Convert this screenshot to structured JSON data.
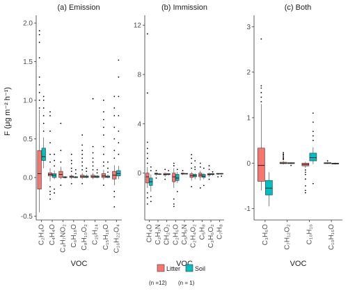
{
  "colors": {
    "litter": "#F8766D",
    "soil": "#00BFC4",
    "axis": "#333333",
    "outlier": "#000000"
  },
  "legend": {
    "items": [
      {
        "label": "Litter",
        "color": "#F8766D"
      },
      {
        "label": "Soil",
        "color": "#00BFC4"
      }
    ],
    "litter_n": "(n =12)",
    "soil_n": "(n = 1)"
  },
  "chart_data": [
    {
      "type": "box",
      "title": "(a) Emission",
      "ylabel": "F (μg m⁻² h⁻¹)",
      "xlabel": "VOC",
      "ylim": [
        -0.55,
        2.1
      ],
      "yticks": [
        -0.5,
        0.0,
        0.5,
        1.0,
        1.5,
        2.0
      ],
      "ytick_labels": [
        "-0.5",
        "0.0",
        "0.5",
        "1.0",
        "1.5",
        "2.0"
      ],
      "categories": [
        {
          "label": "C₂H₄O",
          "litter": {
            "low": -0.45,
            "q1": -0.15,
            "med": 0.05,
            "q3": 0.35,
            "high": 0.88,
            "out": [
              0.9,
              1.0,
              1.1,
              1.2,
              1.3,
              1.55,
              1.75,
              1.85,
              1.9
            ]
          },
          "soil": {
            "low": 0.12,
            "q1": 0.22,
            "med": 0.27,
            "q3": 0.38,
            "high": 0.52,
            "out": [
              0.6,
              0.7,
              0.8,
              0.9,
              1.0,
              1.05
            ]
          }
        },
        {
          "label": "C₄H₄O",
          "litter": {
            "low": -0.05,
            "q1": 0.02,
            "med": 0.04,
            "q3": 0.06,
            "high": 0.12,
            "out": [
              -0.28,
              -0.22,
              -0.18,
              -0.12,
              0.2,
              0.3,
              0.45,
              0.6,
              0.8,
              0.85
            ]
          },
          "soil": {
            "low": -0.02,
            "q1": 0.0,
            "med": 0.03,
            "q3": 0.05,
            "high": 0.09,
            "out": [
              -0.2,
              -0.15,
              0.15,
              0.22,
              0.3
            ]
          }
        },
        {
          "label": "C₄H₇NO₂",
          "litter": {
            "low": -0.02,
            "q1": 0.0,
            "med": 0.04,
            "q3": 0.08,
            "high": 0.14,
            "out": [
              -0.1,
              0.2,
              0.35,
              0.7
            ]
          },
          "soil": {
            "low": -0.01,
            "q1": 0.0,
            "med": 0.0,
            "q3": 0.01,
            "high": 0.02,
            "out": [
              0.0
            ]
          }
        },
        {
          "label": "C₆H₁₈O",
          "litter": {
            "low": -0.02,
            "q1": 0.0,
            "med": 0.01,
            "q3": 0.02,
            "high": 0.04,
            "out": [
              -0.08,
              0.08,
              0.12,
              0.18,
              0.22,
              0.3
            ]
          },
          "soil": {
            "low": -0.01,
            "q1": 0.0,
            "med": 0.0,
            "q3": 0.01,
            "high": 0.02,
            "out": [
              0.05,
              0.1
            ]
          }
        },
        {
          "label": "C₈H₁₀O₂",
          "litter": {
            "low": -0.02,
            "q1": 0.0,
            "med": 0.01,
            "q3": 0.03,
            "high": 0.06,
            "out": [
              -0.08,
              0.1,
              0.15,
              0.2,
              0.25,
              0.3,
              0.35,
              0.42,
              0.55
            ]
          },
          "soil": {
            "low": -0.01,
            "q1": 0.0,
            "med": 0.01,
            "q3": 0.02,
            "high": 0.04,
            "out": [
              0.08,
              0.12
            ]
          }
        },
        {
          "label": "C₁₅H₂₄",
          "litter": {
            "low": -0.02,
            "q1": 0.0,
            "med": 0.01,
            "q3": 0.03,
            "high": 0.06,
            "out": [
              0.1,
              0.15,
              0.2,
              0.25,
              0.32,
              0.4,
              1.02
            ]
          },
          "soil": {
            "low": -0.01,
            "q1": 0.0,
            "med": 0.01,
            "q3": 0.02,
            "high": 0.03,
            "out": [
              0.06,
              0.1
            ]
          }
        },
        {
          "label": "C₁₅H₁₈O",
          "litter": {
            "low": -0.03,
            "q1": 0.0,
            "med": 0.02,
            "q3": 0.05,
            "high": 0.1,
            "out": [
              -0.1,
              0.15,
              0.2,
              0.3,
              0.4,
              0.55,
              0.65,
              0.75,
              0.85,
              1.0
            ]
          },
          "soil": {
            "low": -0.01,
            "q1": 0.0,
            "med": 0.01,
            "q3": 0.02,
            "high": 0.04,
            "out": [
              0.07,
              0.12,
              0.2
            ]
          }
        },
        {
          "label": "C₁₆H₂₂O₄",
          "litter": {
            "low": -0.1,
            "q1": -0.02,
            "med": 0.03,
            "q3": 0.08,
            "high": 0.16,
            "out": [
              -0.38,
              -0.25,
              -0.18,
              0.25,
              0.35,
              0.5,
              0.65,
              0.8,
              0.9,
              1.05
            ]
          },
          "soil": {
            "low": -0.02,
            "q1": 0.02,
            "med": 0.05,
            "q3": 0.09,
            "high": 0.15,
            "out": [
              0.3,
              0.45,
              0.6,
              0.8,
              1.05,
              1.3,
              1.52
            ]
          }
        }
      ]
    },
    {
      "type": "box",
      "title": "(b) Immission",
      "xlabel": "VOC",
      "ylim": [
        -3.8,
        12.8
      ],
      "yticks": [
        0,
        4,
        8,
        12
      ],
      "ytick_labels": [
        "0",
        "4",
        "8",
        "12"
      ],
      "categories": [
        {
          "label": "CH₄O",
          "litter": {
            "low": -1.2,
            "q1": -0.8,
            "med": -0.3,
            "q3": 0.0,
            "high": 0.5,
            "out": [
              -2.5,
              -2.0,
              -1.6,
              0.8,
              1.2,
              1.6,
              2.0,
              2.5,
              6.5,
              11.3
            ]
          },
          "soil": {
            "low": -1.5,
            "q1": -1.0,
            "med": -0.7,
            "q3": -0.4,
            "high": -0.1,
            "out": [
              -2.3,
              -1.9,
              0.2,
              0.5
            ]
          }
        },
        {
          "label": "C₂H₃N",
          "litter": {
            "low": -0.2,
            "q1": -0.1,
            "med": -0.05,
            "q3": 0.0,
            "high": 0.05,
            "out": [
              -0.4,
              0.2
            ]
          },
          "soil": {
            "low": -0.15,
            "q1": -0.1,
            "med": -0.08,
            "q3": -0.05,
            "high": 0.0,
            "out": []
          }
        },
        {
          "label": "CH₂O₂",
          "litter": {
            "low": -0.3,
            "q1": -0.15,
            "med": -0.1,
            "q3": -0.02,
            "high": 0.05,
            "out": [
              -0.5,
              0.3
            ]
          },
          "soil": {
            "low": -0.2,
            "q1": -0.12,
            "med": -0.08,
            "q3": -0.04,
            "high": 0.0,
            "out": [
              0.2
            ]
          }
        },
        {
          "label": "C₂H₆O",
          "litter": {
            "low": -1.2,
            "q1": -0.7,
            "med": -0.3,
            "q3": 0.0,
            "high": 0.4,
            "out": [
              -2.7,
              -2.5,
              -2.1,
              0.6,
              0.8
            ]
          },
          "soil": {
            "low": -0.8,
            "q1": -0.6,
            "med": -0.4,
            "q3": -0.1,
            "high": 0.1,
            "out": [
              -1.5,
              0.3
            ]
          }
        },
        {
          "label": "C₅H₅N",
          "litter": {
            "low": -0.15,
            "q1": -0.08,
            "med": -0.05,
            "q3": 0.0,
            "high": 0.05,
            "out": [
              0.2
            ]
          },
          "soil": {
            "low": -0.1,
            "q1": -0.07,
            "med": -0.05,
            "q3": -0.02,
            "high": 0.0,
            "out": []
          }
        },
        {
          "label": "C₂H₄O₂",
          "litter": {
            "low": -0.6,
            "q1": -0.35,
            "med": -0.2,
            "q3": -0.05,
            "high": 0.1,
            "out": [
              -1.1,
              0.4,
              0.8,
              1.2,
              1.5
            ]
          },
          "soil": {
            "low": -0.5,
            "q1": -0.3,
            "med": -0.2,
            "q3": -0.1,
            "high": 0.0,
            "out": [
              0.3,
              0.5,
              1.0
            ]
          }
        },
        {
          "label": "C₅H₈",
          "litter": {
            "low": -0.6,
            "q1": -0.3,
            "med": -0.15,
            "q3": 0.0,
            "high": 0.2,
            "out": [
              -1.2,
              0.5,
              0.8
            ]
          },
          "soil": {
            "low": -0.5,
            "q1": -0.35,
            "med": -0.25,
            "q3": -0.1,
            "high": 0.0,
            "out": [
              -1.0,
              0.4
            ]
          }
        },
        {
          "label": "C₃H₆O₂",
          "litter": {
            "low": -0.3,
            "q1": -0.15,
            "med": -0.1,
            "q3": -0.03,
            "high": 0.05,
            "out": [
              -0.5,
              0.3,
              0.6
            ]
          },
          "soil": {
            "low": -0.2,
            "q1": -0.12,
            "med": -0.08,
            "q3": -0.04,
            "high": 0.0,
            "out": [
              0.1
            ]
          }
        },
        {
          "label": "C₇H₈",
          "litter": {
            "low": -0.15,
            "q1": -0.08,
            "med": -0.05,
            "q3": -0.02,
            "high": 0.02,
            "out": [
              -0.3
            ]
          },
          "soil": {
            "low": -0.12,
            "q1": -0.06,
            "med": -0.04,
            "q3": -0.02,
            "high": 0.0,
            "out": [
              -0.25
            ]
          }
        }
      ]
    },
    {
      "type": "box",
      "title": "(c) Both",
      "xlabel": "VOC",
      "ylim": [
        -1.25,
        3.25
      ],
      "yticks": [
        -1,
        0,
        1,
        2,
        3
      ],
      "ytick_labels": [
        "-1",
        "0",
        "1",
        "2",
        "3"
      ],
      "categories": [
        {
          "label": "C₃H₆O",
          "litter": {
            "low": -0.6,
            "q1": -0.4,
            "med": -0.05,
            "q3": 0.33,
            "high": 1.3,
            "out": [
              1.35,
              1.45,
              1.55,
              1.65,
              1.7,
              2.73
            ]
          },
          "soil": {
            "low": -0.95,
            "q1": -0.7,
            "med": -0.55,
            "q3": -0.38,
            "high": -0.2,
            "out": []
          }
        },
        {
          "label": "C₇H₁₂O₂",
          "litter": {
            "low": -0.03,
            "q1": -0.01,
            "med": 0.0,
            "q3": 0.02,
            "high": 0.05,
            "out": [
              0.08,
              0.1,
              0.12,
              0.15,
              0.18,
              0.2,
              0.23
            ]
          },
          "soil": {
            "low": -0.02,
            "q1": -0.01,
            "med": 0.0,
            "q3": 0.01,
            "high": 0.02,
            "out": [
              -0.05
            ]
          }
        },
        {
          "label": "C₁₀H₁₆",
          "litter": {
            "low": -0.1,
            "q1": -0.06,
            "med": -0.03,
            "q3": 0.0,
            "high": 0.03,
            "out": [
              -0.65,
              -0.6,
              -0.5,
              -0.35,
              -0.25,
              -0.2,
              -0.15
            ]
          },
          "soil": {
            "low": -0.02,
            "q1": 0.05,
            "med": 0.12,
            "q3": 0.22,
            "high": 0.35,
            "out": [
              -0.45,
              0.5,
              0.6,
              0.7,
              0.9,
              1.1
            ]
          }
        },
        {
          "label": "C₁₀H₁₆O",
          "litter": {
            "low": -0.02,
            "q1": -0.01,
            "med": 0.0,
            "q3": 0.01,
            "high": 0.02,
            "out": [
              0.05
            ]
          },
          "soil": {
            "low": -0.03,
            "q1": -0.02,
            "med": -0.01,
            "q3": 0.0,
            "high": 0.01,
            "out": []
          }
        }
      ]
    }
  ]
}
